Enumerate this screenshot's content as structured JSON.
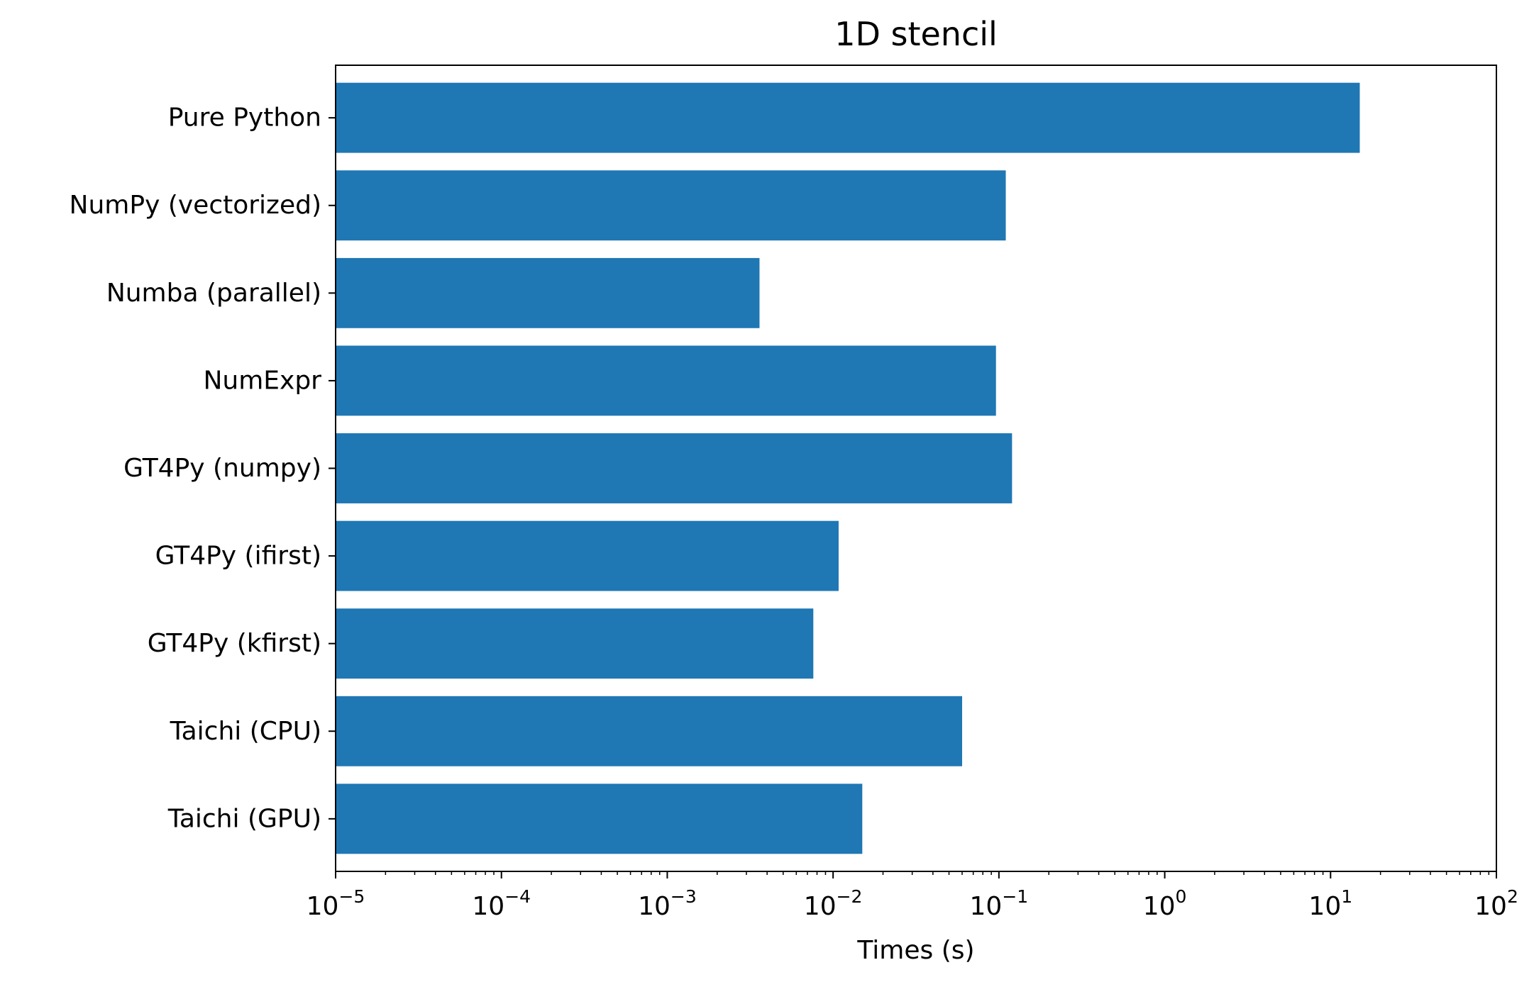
{
  "chart_data": {
    "type": "bar",
    "orientation": "horizontal",
    "title": "1D stencil",
    "xlabel": "Times (s)",
    "ylabel": "",
    "xscale": "log",
    "xlim": [
      1e-05,
      100
    ],
    "grid": false,
    "color": "#1f77b4",
    "categories": [
      "Pure Python",
      "NumPy (vectorized)",
      "Numba (parallel)",
      "NumExpr",
      "GT4Py (numpy)",
      "GT4Py (ifirst)",
      "GT4Py (kfirst)",
      "Taichi (CPU)",
      "Taichi (GPU)"
    ],
    "values": [
      15,
      0.11,
      0.0036,
      0.096,
      0.12,
      0.0108,
      0.0076,
      0.06,
      0.015
    ],
    "xticks": [
      {
        "base": "10",
        "exp": "−5"
      },
      {
        "base": "10",
        "exp": "−4"
      },
      {
        "base": "10",
        "exp": "−3"
      },
      {
        "base": "10",
        "exp": "−2"
      },
      {
        "base": "10",
        "exp": "−1"
      },
      {
        "base": "10",
        "exp": "0"
      },
      {
        "base": "10",
        "exp": "1"
      },
      {
        "base": "10",
        "exp": "2"
      }
    ]
  }
}
